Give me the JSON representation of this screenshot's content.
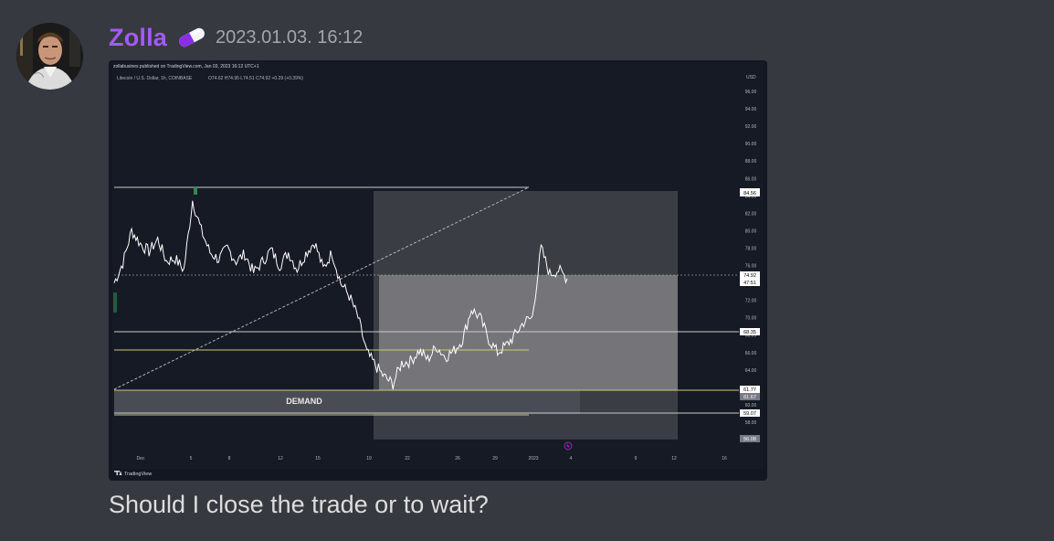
{
  "message": {
    "author": "Zolla",
    "author_color": "#a35af6",
    "badge_icon": "pill-icon",
    "timestamp": "2023.01.03. 16:12",
    "text": "Should I close the trade or to wait?"
  },
  "chart": {
    "published_by": "zollabusines published on TradingView.com, Jan 03, 2023 16:12 UTC+1",
    "symbol_info": "Litecoin / U.S. Dollar, 1h, COINBASE",
    "ohlc": "O74.62  H74.95  L74.51  C74.92  +0.29 (+0.39%)",
    "currency": "USD",
    "footer_logo": "TradingView",
    "demand_label": "DEMAND"
  },
  "chart_data": {
    "type": "line",
    "title": "Litecoin / U.S. Dollar, 1h, COINBASE",
    "x_ticks": [
      "Dec",
      "5",
      "8",
      "12",
      "15",
      "19",
      "22",
      "26",
      "29",
      "2023",
      "4",
      "9",
      "12",
      "16"
    ],
    "y_ticks": [
      "96.00",
      "94.00",
      "92.00",
      "90.00",
      "88.00",
      "86.00",
      "84.00",
      "82.00",
      "80.00",
      "78.00",
      "76.00",
      "74.00",
      "72.00",
      "70.00",
      "68.00",
      "66.00",
      "64.00",
      "62.00",
      "60.00",
      "58.00"
    ],
    "ylim": [
      56,
      97
    ],
    "price_labels": [
      "84.56",
      "74.92",
      "47:51",
      "68.35",
      "61.77",
      "61.67",
      "59.07",
      "56.08"
    ],
    "levels": [
      84.56,
      68.35,
      66.3,
      61.77,
      59.07
    ],
    "series": [
      {
        "values": [
          74,
          76.3,
          80,
          78.5,
          77.6,
          79,
          76.5,
          76.8,
          75.5,
          83.5,
          80,
          77.5,
          76.7,
          78,
          76.5,
          77.3,
          75.2,
          76.4,
          77.8,
          76,
          77.5,
          75.6,
          77.4,
          78.7,
          75.6,
          77.5,
          74,
          72.5,
          70,
          66,
          64.5,
          63.2,
          62.4,
          64.8,
          65,
          66.2,
          65.2,
          66.7,
          65.5,
          66.2,
          67.5,
          71,
          70,
          67.5,
          66,
          66.8,
          68,
          69.5,
          70,
          78,
          75,
          75.5,
          74.5
        ]
      }
    ]
  }
}
